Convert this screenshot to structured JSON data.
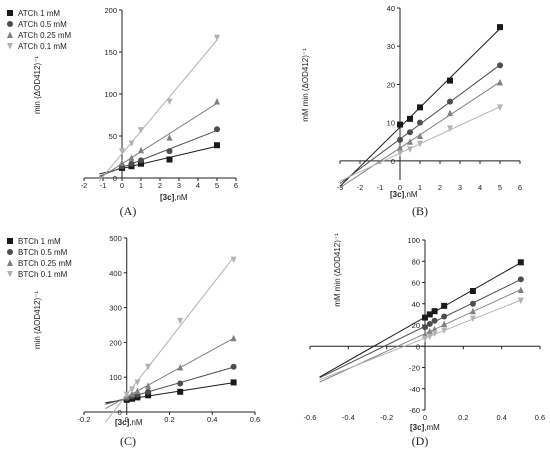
{
  "figure": {
    "colors": {
      "black": "#1a1a1a",
      "dark_gray": "#4d4d4d",
      "gray": "#808080",
      "light_gray": "#b3b3b3"
    }
  },
  "chart_data": [
    {
      "panel": "(A)",
      "type": "line",
      "subtype": "lineweaver-burk",
      "xlabel_prefix": "[3c]",
      "xlabel_suffix": ",nM",
      "ylabel": "min (ΔOD412)⁻¹",
      "xlim": [
        -2,
        6
      ],
      "ylim": [
        0,
        200
      ],
      "xticks": [
        -2,
        -1,
        0,
        1,
        2,
        3,
        4,
        5,
        6
      ],
      "yticks": [
        0,
        50,
        100,
        150,
        200
      ],
      "legend": "top-left",
      "fit_x_start": -1.2,
      "series": [
        {
          "name": "ATCh 1 mM",
          "marker": "square",
          "color": "#1a1a1a",
          "x": [
            0,
            0.5,
            1,
            2.5,
            5
          ],
          "y": [
            12,
            14,
            17,
            22,
            39
          ]
        },
        {
          "name": "ATCh 0.5 mM",
          "marker": "circle",
          "color": "#4d4d4d",
          "x": [
            0,
            0.5,
            1,
            2.5,
            5
          ],
          "y": [
            14,
            17,
            21,
            32,
            58
          ]
        },
        {
          "name": "ATCh 0.25 mM",
          "marker": "triangle",
          "color": "#808080",
          "x": [
            0,
            0.5,
            1,
            2.5,
            5
          ],
          "y": [
            18,
            24,
            33,
            48,
            91
          ]
        },
        {
          "name": "ATCh 0.1 mM",
          "marker": "tri-down",
          "color": "#b3b3b3",
          "x": [
            0,
            0.5,
            1,
            2.5,
            5
          ],
          "y": [
            32,
            41,
            57,
            91,
            167
          ]
        }
      ]
    },
    {
      "panel": "(B)",
      "type": "line",
      "subtype": "replot",
      "xlabel_prefix": "[3c]",
      "xlabel_suffix": ",nM",
      "ylabel": "mM min (ΔOD412)⁻¹",
      "xlim": [
        -3,
        6
      ],
      "ylim": [
        -5,
        40
      ],
      "xticks": [
        -3,
        -2,
        -1,
        0,
        1,
        2,
        3,
        4,
        5,
        6
      ],
      "yticks": [
        0,
        10,
        20,
        30,
        40
      ],
      "fit_x_start": -3,
      "series": [
        {
          "marker": "square",
          "color": "#1a1a1a",
          "x": [
            0,
            0.5,
            1,
            2.5,
            5
          ],
          "y": [
            9.5,
            11,
            14,
            21,
            35
          ]
        },
        {
          "marker": "circle",
          "color": "#4d4d4d",
          "x": [
            0,
            0.5,
            1,
            2.5,
            5
          ],
          "y": [
            5.5,
            7.5,
            10,
            15.5,
            25
          ]
        },
        {
          "marker": "triangle",
          "color": "#808080",
          "x": [
            0,
            0.5,
            1,
            2.5,
            5
          ],
          "y": [
            3.5,
            5,
            6.5,
            12.5,
            20.5
          ]
        },
        {
          "marker": "tri-down",
          "color": "#b3b3b3",
          "x": [
            0,
            0.5,
            1,
            2.5,
            5
          ],
          "y": [
            2,
            3,
            4.5,
            8.5,
            14
          ]
        }
      ]
    },
    {
      "panel": "(C)",
      "type": "line",
      "subtype": "lineweaver-burk",
      "xlabel_prefix": "[3c]",
      "xlabel_suffix": ",nM",
      "ylabel": "min (ΔOD412)⁻¹",
      "xlim": [
        -0.2,
        0.6
      ],
      "ylim": [
        0,
        500
      ],
      "xticks": [
        -0.2,
        0,
        0.2,
        0.4,
        0.6
      ],
      "yticks": [
        0,
        100,
        200,
        300,
        400,
        500
      ],
      "legend": "top-left",
      "fit_x_start": -0.1,
      "series": [
        {
          "name": "BTCh 1 mM",
          "marker": "square",
          "color": "#1a1a1a",
          "x": [
            0,
            0.025,
            0.05,
            0.1,
            0.25,
            0.5
          ],
          "y": [
            35,
            38,
            42,
            48,
            58,
            85
          ]
        },
        {
          "name": "BTCh 0.5 mM",
          "marker": "circle",
          "color": "#4d4d4d",
          "x": [
            0,
            0.025,
            0.05,
            0.1,
            0.25,
            0.5
          ],
          "y": [
            40,
            45,
            50,
            58,
            82,
            130
          ]
        },
        {
          "name": "BTCh 0.25 mM",
          "marker": "triangle",
          "color": "#808080",
          "x": [
            0,
            0.025,
            0.05,
            0.1,
            0.25,
            0.5
          ],
          "y": [
            45,
            52,
            60,
            75,
            128,
            212
          ]
        },
        {
          "name": "BTCh 0.1 mM",
          "marker": "tri-down",
          "color": "#b3b3b3",
          "x": [
            0,
            0.025,
            0.05,
            0.1,
            0.25,
            0.5
          ],
          "y": [
            50,
            65,
            85,
            130,
            262,
            438
          ]
        }
      ]
    },
    {
      "panel": "(D)",
      "type": "line",
      "subtype": "replot",
      "xlabel_prefix": "[3c]",
      "xlabel_suffix": ",mM",
      "ylabel": "mM min (ΔOD412)⁻¹",
      "xlim": [
        -0.6,
        0.6
      ],
      "ylim": [
        -60,
        100
      ],
      "xticks": [
        -0.6,
        -0.4,
        -0.2,
        0,
        0.2,
        0.4,
        0.6
      ],
      "yticks": [
        -60,
        -40,
        -20,
        0,
        20,
        40,
        60,
        80,
        100
      ],
      "fit_x_start": -0.55,
      "series": [
        {
          "marker": "square",
          "color": "#1a1a1a",
          "x": [
            0,
            0.025,
            0.05,
            0.1,
            0.25,
            0.5
          ],
          "y": [
            27,
            30,
            33,
            38,
            52,
            79
          ]
        },
        {
          "marker": "circle",
          "color": "#4d4d4d",
          "x": [
            0,
            0.025,
            0.05,
            0.1,
            0.25,
            0.5
          ],
          "y": [
            18,
            21,
            24,
            28,
            40,
            63
          ]
        },
        {
          "marker": "triangle",
          "color": "#808080",
          "x": [
            0,
            0.025,
            0.05,
            0.1,
            0.25,
            0.5
          ],
          "y": [
            11,
            14,
            16,
            21,
            33,
            53
          ]
        },
        {
          "marker": "tri-down",
          "color": "#b3b3b3",
          "x": [
            0,
            0.025,
            0.05,
            0.1,
            0.25,
            0.5
          ],
          "y": [
            7,
            9,
            12,
            15,
            26,
            43
          ]
        }
      ]
    }
  ]
}
